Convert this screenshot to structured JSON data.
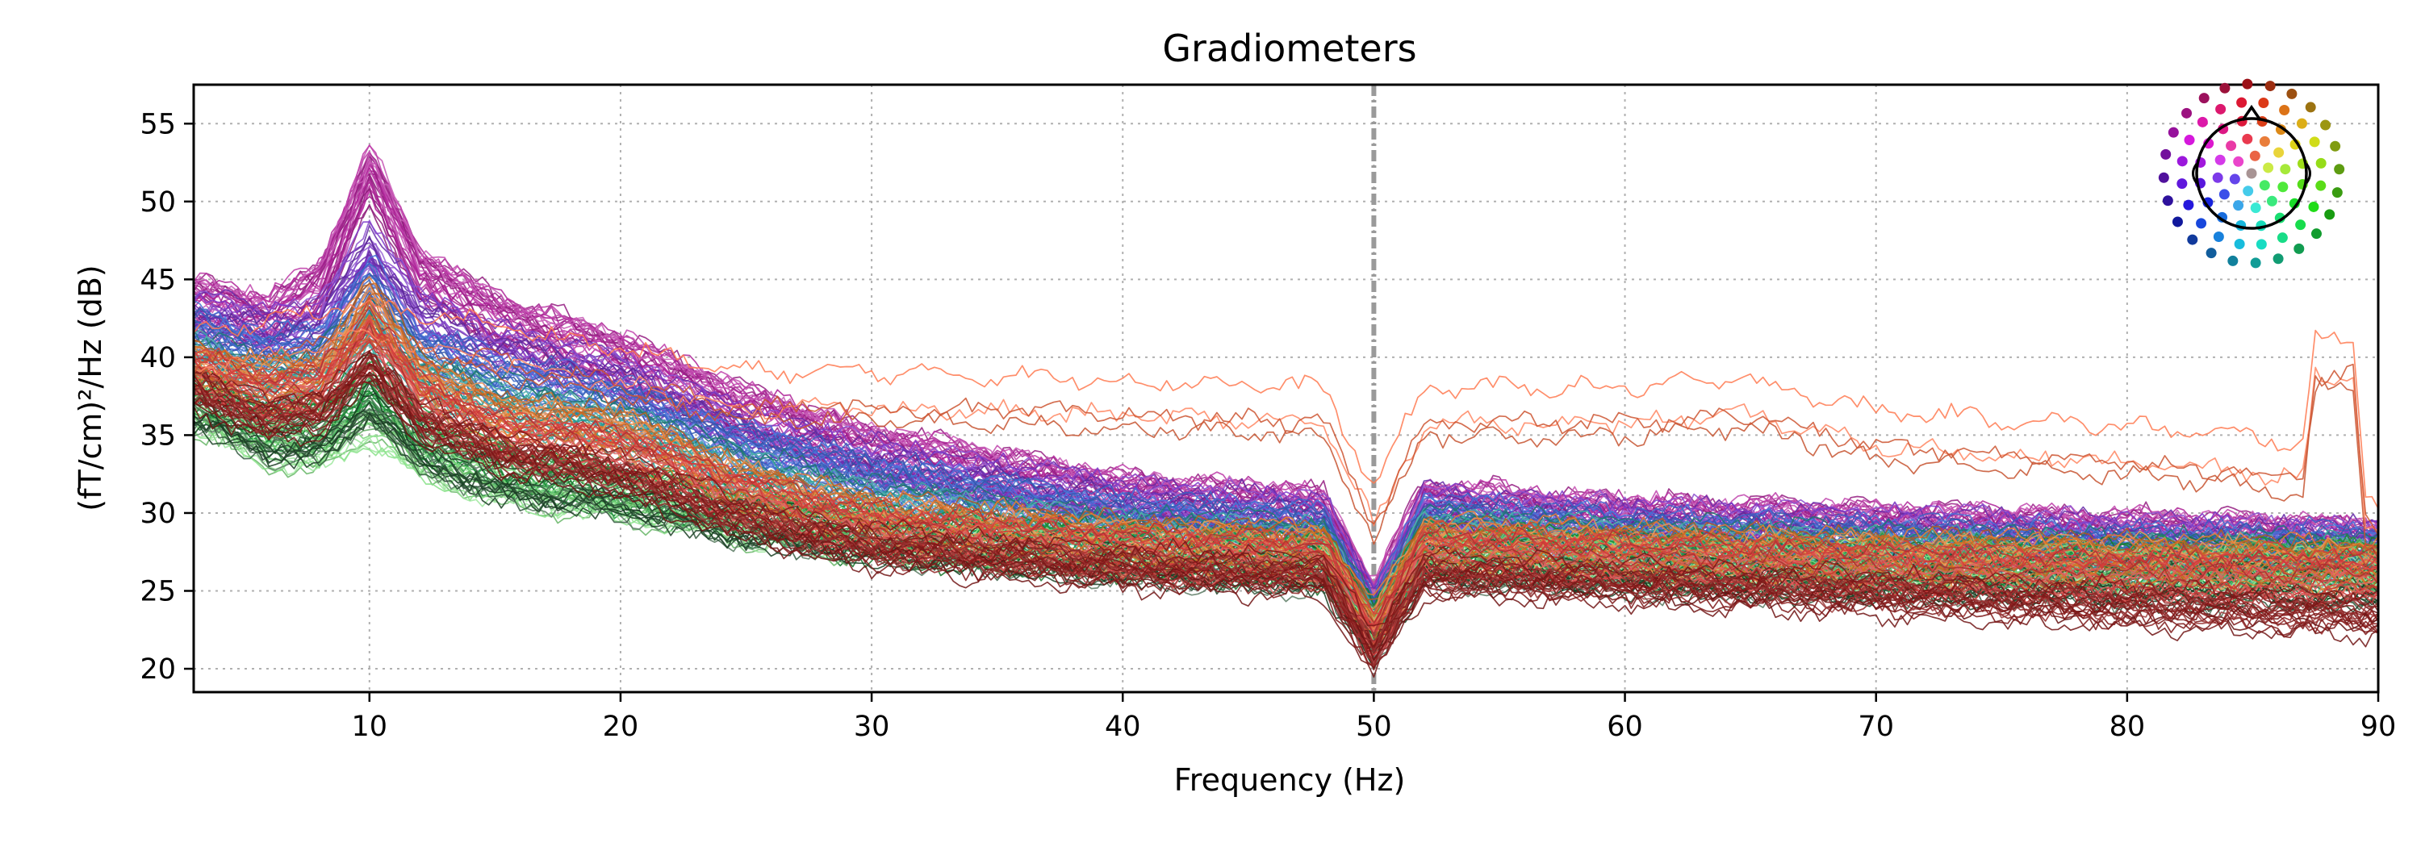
{
  "chart_data": {
    "type": "line",
    "title": "Gradiometers",
    "xlabel": "Frequency (Hz)",
    "ylabel": "(fT/cm)²/Hz (dB)",
    "xlim": [
      3,
      90
    ],
    "ylim": [
      18.5,
      57.5
    ],
    "xticks": [
      10,
      20,
      30,
      40,
      50,
      60,
      70,
      80,
      90
    ],
    "yticks": [
      20,
      25,
      30,
      35,
      40,
      45,
      50,
      55
    ],
    "grid": true,
    "grid_style": "dotted",
    "inset": "sensor-layout (top-right)",
    "notch_markers_hz": [
      50
    ],
    "series_groups": [
      {
        "group": "frontal-magenta",
        "color": "#b5249e",
        "count": 34,
        "points": [
          [
            3,
            43.5
          ],
          [
            6,
            42.5
          ],
          [
            8,
            44.5
          ],
          [
            10,
            52
          ],
          [
            12,
            45.5
          ],
          [
            15,
            42.5
          ],
          [
            20,
            40
          ],
          [
            25,
            36.5
          ],
          [
            30,
            34
          ],
          [
            40,
            31
          ],
          [
            48,
            30
          ],
          [
            50,
            24
          ],
          [
            52,
            30.5
          ],
          [
            60,
            29.5
          ],
          [
            70,
            29
          ],
          [
            80,
            28.5
          ],
          [
            90,
            28
          ]
        ]
      },
      {
        "group": "frontal-purple",
        "color": "#7a35c8",
        "count": 22,
        "points": [
          [
            3,
            42.5
          ],
          [
            6,
            41.5
          ],
          [
            8,
            42
          ],
          [
            10,
            47
          ],
          [
            12,
            42.5
          ],
          [
            15,
            40.5
          ],
          [
            20,
            38.5
          ],
          [
            25,
            35
          ],
          [
            30,
            33
          ],
          [
            40,
            30.5
          ],
          [
            48,
            29.5
          ],
          [
            50,
            23.5
          ],
          [
            52,
            30
          ],
          [
            60,
            29
          ],
          [
            70,
            28.5
          ],
          [
            80,
            28
          ],
          [
            90,
            27.8
          ]
        ]
      },
      {
        "group": "central-blue",
        "color": "#3f6ed6",
        "count": 22,
        "points": [
          [
            3,
            41.5
          ],
          [
            6,
            40
          ],
          [
            8,
            40.5
          ],
          [
            10,
            44.5
          ],
          [
            12,
            40.5
          ],
          [
            15,
            38.5
          ],
          [
            20,
            37
          ],
          [
            25,
            34
          ],
          [
            30,
            32
          ],
          [
            40,
            29.5
          ],
          [
            48,
            28.8
          ],
          [
            50,
            23
          ],
          [
            52,
            29.5
          ],
          [
            60,
            28.5
          ],
          [
            70,
            28
          ],
          [
            80,
            27.5
          ],
          [
            90,
            27.5
          ]
        ]
      },
      {
        "group": "teal",
        "color": "#2aa198",
        "count": 20,
        "points": [
          [
            3,
            40
          ],
          [
            6,
            38.5
          ],
          [
            8,
            38.8
          ],
          [
            10,
            42
          ],
          [
            12,
            38.8
          ],
          [
            15,
            37
          ],
          [
            20,
            35.5
          ],
          [
            25,
            32.5
          ],
          [
            30,
            30.5
          ],
          [
            40,
            28.5
          ],
          [
            48,
            28
          ],
          [
            50,
            22.8
          ],
          [
            52,
            28.8
          ],
          [
            60,
            28
          ],
          [
            70,
            27.5
          ],
          [
            80,
            27
          ],
          [
            90,
            27
          ]
        ]
      },
      {
        "group": "left-green",
        "color": "#1e9e3c",
        "count": 24,
        "points": [
          [
            3,
            37.5
          ],
          [
            6,
            35.5
          ],
          [
            8,
            35.5
          ],
          [
            10,
            38
          ],
          [
            12,
            35
          ],
          [
            15,
            33
          ],
          [
            20,
            31.5
          ],
          [
            25,
            30
          ],
          [
            30,
            28.5
          ],
          [
            40,
            27.5
          ],
          [
            48,
            27
          ],
          [
            50,
            22.5
          ],
          [
            52,
            27.5
          ],
          [
            60,
            27
          ],
          [
            70,
            26.5
          ],
          [
            80,
            26.5
          ],
          [
            90,
            26.5
          ]
        ]
      },
      {
        "group": "light-green",
        "color": "#7ee07e",
        "count": 16,
        "points": [
          [
            3,
            36.5
          ],
          [
            6,
            34.5
          ],
          [
            8,
            34
          ],
          [
            10,
            36
          ],
          [
            12,
            33.5
          ],
          [
            15,
            32
          ],
          [
            20,
            31
          ],
          [
            25,
            29.5
          ],
          [
            30,
            28.5
          ],
          [
            40,
            27.5
          ],
          [
            48,
            27
          ],
          [
            50,
            22.8
          ],
          [
            52,
            27.5
          ],
          [
            60,
            27
          ],
          [
            70,
            26.8
          ],
          [
            80,
            26.5
          ],
          [
            90,
            26.5
          ]
        ]
      },
      {
        "group": "dark-green",
        "color": "#1f4a2a",
        "count": 16,
        "points": [
          [
            3,
            37
          ],
          [
            6,
            35
          ],
          [
            8,
            35
          ],
          [
            10,
            37.5
          ],
          [
            12,
            34.5
          ],
          [
            15,
            32.5
          ],
          [
            20,
            31.5
          ],
          [
            25,
            29.5
          ],
          [
            30,
            28.5
          ],
          [
            40,
            27.2
          ],
          [
            48,
            26.5
          ],
          [
            50,
            22
          ],
          [
            52,
            27
          ],
          [
            60,
            26.5
          ],
          [
            70,
            26
          ],
          [
            80,
            25.8
          ],
          [
            90,
            25.5
          ]
        ]
      },
      {
        "group": "orange",
        "color": "#e8782a",
        "count": 20,
        "points": [
          [
            3,
            39.5
          ],
          [
            6,
            38
          ],
          [
            8,
            38.5
          ],
          [
            10,
            43
          ],
          [
            12,
            38.5
          ],
          [
            15,
            36
          ],
          [
            20,
            35
          ],
          [
            25,
            31.5
          ],
          [
            30,
            29.5
          ],
          [
            40,
            28
          ],
          [
            48,
            27.5
          ],
          [
            50,
            22.5
          ],
          [
            52,
            28
          ],
          [
            60,
            27.5
          ],
          [
            70,
            27
          ],
          [
            80,
            26.8
          ],
          [
            90,
            26.5
          ]
        ]
      },
      {
        "group": "right-red",
        "color": "#d63a3a",
        "count": 20,
        "points": [
          [
            3,
            39
          ],
          [
            6,
            37.5
          ],
          [
            8,
            37.8
          ],
          [
            10,
            41.5
          ],
          [
            12,
            37.5
          ],
          [
            15,
            35
          ],
          [
            20,
            34
          ],
          [
            25,
            31
          ],
          [
            30,
            29
          ],
          [
            40,
            27.5
          ],
          [
            48,
            27
          ],
          [
            50,
            22
          ],
          [
            52,
            27.5
          ],
          [
            60,
            27
          ],
          [
            70,
            26.5
          ],
          [
            80,
            26
          ],
          [
            90,
            26
          ]
        ]
      },
      {
        "group": "occipital-darkred",
        "color": "#8b1a1a",
        "count": 20,
        "points": [
          [
            3,
            38
          ],
          [
            6,
            36
          ],
          [
            8,
            36.5
          ],
          [
            10,
            39.5
          ],
          [
            12,
            36
          ],
          [
            15,
            34
          ],
          [
            20,
            32.5
          ],
          [
            25,
            29.5
          ],
          [
            30,
            27.8
          ],
          [
            40,
            26.5
          ],
          [
            48,
            26
          ],
          [
            50,
            21
          ],
          [
            52,
            26
          ],
          [
            60,
            25.5
          ],
          [
            70,
            24.8
          ],
          [
            80,
            24
          ],
          [
            90,
            23.5
          ]
        ]
      },
      {
        "group": "artifact-orange",
        "color": "#ff6a3d",
        "count": 4,
        "points": [
          [
            3,
            40
          ],
          [
            10,
            42
          ],
          [
            20,
            39
          ],
          [
            25,
            37.5
          ],
          [
            30,
            37.5
          ],
          [
            40,
            37
          ],
          [
            48,
            36.5
          ],
          [
            50,
            30
          ],
          [
            52,
            36.5
          ],
          [
            60,
            36.5
          ],
          [
            65,
            37
          ],
          [
            70,
            35
          ],
          [
            80,
            34
          ],
          [
            87,
            33
          ],
          [
            87.5,
            39.5
          ],
          [
            89,
            39.5
          ],
          [
            89.5,
            30
          ],
          [
            90,
            29
          ]
        ]
      }
    ]
  }
}
